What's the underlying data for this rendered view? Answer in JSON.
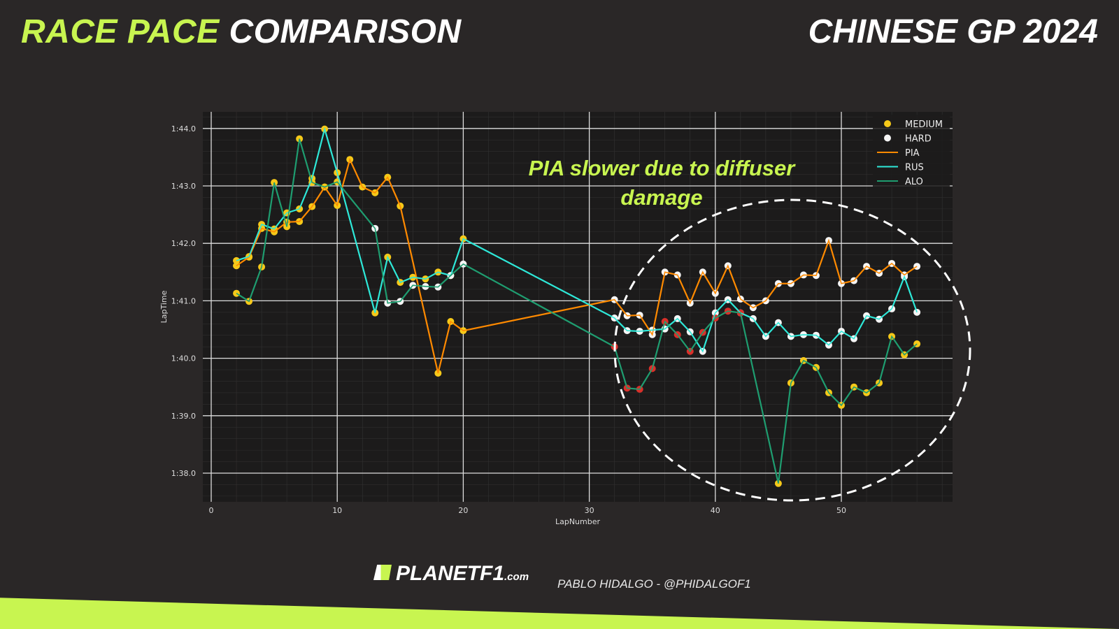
{
  "header": {
    "title_accent": "RACE PACE",
    "title_rest": "COMPARISON",
    "event": "CHINESE GP 2024"
  },
  "footer": {
    "logo": "PLANETF1",
    "logo_suffix": ".com",
    "credit": "PABLO HIDALGO - @PHIDALGOF1"
  },
  "chart_data": {
    "type": "line",
    "xlabel": "LapNumber",
    "ylabel": "LapTime",
    "xlim": [
      0,
      58.5
    ],
    "ylim": [
      97.6,
      104.3
    ],
    "xticks": [
      0,
      10,
      20,
      30,
      40,
      50
    ],
    "yticks": [
      {
        "value": 98,
        "label": "1:38.0"
      },
      {
        "value": 99,
        "label": "1:39.0"
      },
      {
        "value": 100,
        "label": "1:40.0"
      },
      {
        "value": 101,
        "label": "1:41.0"
      },
      {
        "value": 102,
        "label": "1:42.0"
      },
      {
        "value": 103,
        "label": "1:43.0"
      },
      {
        "value": 104,
        "label": "1:44.0"
      }
    ],
    "grid": true,
    "legend_position": "top-right",
    "legend": [
      {
        "kind": "marker",
        "label": "MEDIUM",
        "compound": "M"
      },
      {
        "kind": "marker",
        "label": "HARD",
        "compound": "H"
      },
      {
        "kind": "line",
        "label": "PIA"
      },
      {
        "kind": "line",
        "label": "RUS"
      },
      {
        "kind": "line",
        "label": "ALO"
      }
    ],
    "compound_colors": {
      "M": "#f6c919",
      "H": "#f5f5f5",
      "S": "#d9302a"
    },
    "annotation": {
      "line1": "PIA slower due to diffuser",
      "line2": "damage",
      "color": "#c8f550"
    },
    "series": [
      {
        "name": "PIA",
        "color": "#ff8a00",
        "points": [
          [
            2,
            101.61,
            "M"
          ],
          [
            3,
            101.76,
            "M"
          ],
          [
            4,
            102.26,
            "M"
          ],
          [
            5,
            102.2,
            "M"
          ],
          [
            6,
            102.37,
            "M"
          ],
          [
            7,
            102.38,
            "M"
          ],
          [
            8,
            102.64,
            "M"
          ],
          [
            9,
            102.98,
            "M"
          ],
          [
            10,
            102.66,
            "M"
          ],
          [
            11,
            103.46,
            "M"
          ],
          [
            12,
            102.98,
            "M"
          ],
          [
            13,
            102.88,
            "M"
          ],
          [
            14,
            103.15,
            "M"
          ],
          [
            15,
            102.65,
            "M"
          ],
          [
            18,
            99.74,
            "M"
          ],
          [
            19,
            100.64,
            "M"
          ],
          [
            20,
            100.48,
            "M"
          ],
          [
            32,
            101.02,
            "H"
          ],
          [
            33,
            100.74,
            "H"
          ],
          [
            34,
            100.75,
            "H"
          ],
          [
            35,
            100.41,
            "H"
          ],
          [
            36,
            101.5,
            "H"
          ],
          [
            37,
            101.45,
            "H"
          ],
          [
            38,
            100.96,
            "H"
          ],
          [
            39,
            101.5,
            "H"
          ],
          [
            40,
            101.13,
            "H"
          ],
          [
            41,
            101.61,
            "H"
          ],
          [
            42,
            101.03,
            "H"
          ],
          [
            43,
            100.88,
            "H"
          ],
          [
            44,
            101.0,
            "H"
          ],
          [
            45,
            101.3,
            "H"
          ],
          [
            46,
            101.3,
            "H"
          ],
          [
            47,
            101.45,
            "H"
          ],
          [
            48,
            101.44,
            "H"
          ],
          [
            49,
            102.05,
            "H"
          ],
          [
            50,
            101.3,
            "H"
          ],
          [
            51,
            101.35,
            "H"
          ],
          [
            52,
            101.6,
            "H"
          ],
          [
            53,
            101.48,
            "H"
          ],
          [
            54,
            101.65,
            "H"
          ],
          [
            55,
            101.45,
            "H"
          ],
          [
            56,
            101.6,
            "H"
          ]
        ]
      },
      {
        "name": "RUS",
        "color": "#2ee8d8",
        "points": [
          [
            2,
            101.7,
            "M"
          ],
          [
            3,
            101.77,
            "M"
          ],
          [
            4,
            102.33,
            "M"
          ],
          [
            5,
            102.25,
            "M"
          ],
          [
            6,
            102.53,
            "M"
          ],
          [
            7,
            102.6,
            "M"
          ],
          [
            8,
            103.13,
            "M"
          ],
          [
            9,
            103.99,
            "M"
          ],
          [
            10,
            103.23,
            "M"
          ],
          [
            13,
            100.79,
            "M"
          ],
          [
            14,
            101.76,
            "M"
          ],
          [
            15,
            101.32,
            "M"
          ],
          [
            16,
            101.41,
            "M"
          ],
          [
            17,
            101.38,
            "M"
          ],
          [
            18,
            101.5,
            "M"
          ],
          [
            19,
            101.44,
            "M"
          ],
          [
            20,
            102.08,
            "M"
          ],
          [
            32,
            100.7,
            "H"
          ],
          [
            33,
            100.48,
            "H"
          ],
          [
            34,
            100.47,
            "H"
          ],
          [
            35,
            100.49,
            "H"
          ],
          [
            36,
            100.51,
            "H"
          ],
          [
            37,
            100.69,
            "H"
          ],
          [
            38,
            100.46,
            "H"
          ],
          [
            39,
            100.12,
            "H"
          ],
          [
            40,
            100.79,
            "H"
          ],
          [
            41,
            101.02,
            "H"
          ],
          [
            42,
            100.79,
            "H"
          ],
          [
            43,
            100.69,
            "H"
          ],
          [
            44,
            100.38,
            "H"
          ],
          [
            45,
            100.62,
            "H"
          ],
          [
            46,
            100.38,
            "H"
          ],
          [
            47,
            100.41,
            "H"
          ],
          [
            48,
            100.4,
            "H"
          ],
          [
            49,
            100.23,
            "H"
          ],
          [
            50,
            100.47,
            "H"
          ],
          [
            51,
            100.34,
            "H"
          ],
          [
            52,
            100.74,
            "H"
          ],
          [
            53,
            100.68,
            "H"
          ],
          [
            54,
            100.86,
            "H"
          ],
          [
            55,
            101.42,
            "H"
          ],
          [
            56,
            100.8,
            "H"
          ]
        ]
      },
      {
        "name": "ALO",
        "color": "#1f9d70",
        "points": [
          [
            2,
            101.13,
            "M"
          ],
          [
            3,
            100.99,
            "M"
          ],
          [
            4,
            101.59,
            "M"
          ],
          [
            5,
            103.06,
            "M"
          ],
          [
            6,
            102.29,
            "M"
          ],
          [
            7,
            103.82,
            "M"
          ],
          [
            8,
            103.06,
            "M"
          ],
          [
            9,
            102.98,
            "M"
          ],
          [
            10,
            103.07,
            "M"
          ],
          [
            13,
            102.26,
            "H"
          ],
          [
            14,
            100.96,
            "H"
          ],
          [
            15,
            100.99,
            "H"
          ],
          [
            16,
            101.27,
            "H"
          ],
          [
            17,
            101.25,
            "H"
          ],
          [
            18,
            101.24,
            "H"
          ],
          [
            19,
            101.44,
            "H"
          ],
          [
            20,
            101.64,
            "H"
          ],
          [
            32,
            100.2,
            "S"
          ],
          [
            33,
            99.48,
            "S"
          ],
          [
            34,
            99.46,
            "S"
          ],
          [
            35,
            99.82,
            "S"
          ],
          [
            36,
            100.64,
            "S"
          ],
          [
            37,
            100.41,
            "S"
          ],
          [
            38,
            100.12,
            "S"
          ],
          [
            39,
            100.45,
            "S"
          ],
          [
            40,
            100.7,
            "S"
          ],
          [
            41,
            100.82,
            "S"
          ],
          [
            42,
            100.79,
            "S"
          ],
          [
            45,
            97.82,
            "M"
          ],
          [
            46,
            99.57,
            "M"
          ],
          [
            47,
            99.96,
            "M"
          ],
          [
            48,
            99.84,
            "M"
          ],
          [
            49,
            99.4,
            "M"
          ],
          [
            50,
            99.18,
            "M"
          ],
          [
            51,
            99.5,
            "M"
          ],
          [
            52,
            99.4,
            "M"
          ],
          [
            53,
            99.57,
            "M"
          ],
          [
            54,
            100.38,
            "M"
          ],
          [
            55,
            100.06,
            "M"
          ],
          [
            56,
            100.25,
            "M"
          ]
        ]
      }
    ]
  }
}
